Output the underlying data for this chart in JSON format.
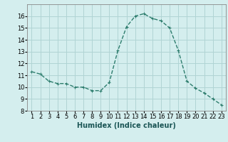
{
  "x": [
    1,
    2,
    3,
    4,
    5,
    6,
    7,
    8,
    9,
    10,
    11,
    12,
    13,
    14,
    15,
    16,
    17,
    18,
    19,
    20,
    21,
    22,
    23
  ],
  "y": [
    11.3,
    11.1,
    10.5,
    10.3,
    10.3,
    10.0,
    10.0,
    9.7,
    9.7,
    10.4,
    13.1,
    15.1,
    16.0,
    16.2,
    15.8,
    15.6,
    15.0,
    13.1,
    10.5,
    9.9,
    9.5,
    9.0,
    8.5
  ],
  "line_color": "#2d7d6d",
  "marker": "+",
  "marker_size": 3.5,
  "linewidth": 1.0,
  "bg_color": "#d4eeee",
  "grid_color": "#b0d4d4",
  "xlabel": "Humidex (Indice chaleur)",
  "xlabel_fontsize": 7,
  "tick_fontsize": 6,
  "xlim": [
    0.5,
    23.5
  ],
  "ylim": [
    8,
    17
  ],
  "yticks": [
    8,
    9,
    10,
    11,
    12,
    13,
    14,
    15,
    16
  ],
  "xtick_labels": [
    "1",
    "2",
    "3",
    "4",
    "5",
    "6",
    "7",
    "8",
    "9",
    "10",
    "11",
    "12",
    "13",
    "14",
    "15",
    "16",
    "17",
    "18",
    "19",
    "20",
    "21",
    "22",
    "23"
  ]
}
